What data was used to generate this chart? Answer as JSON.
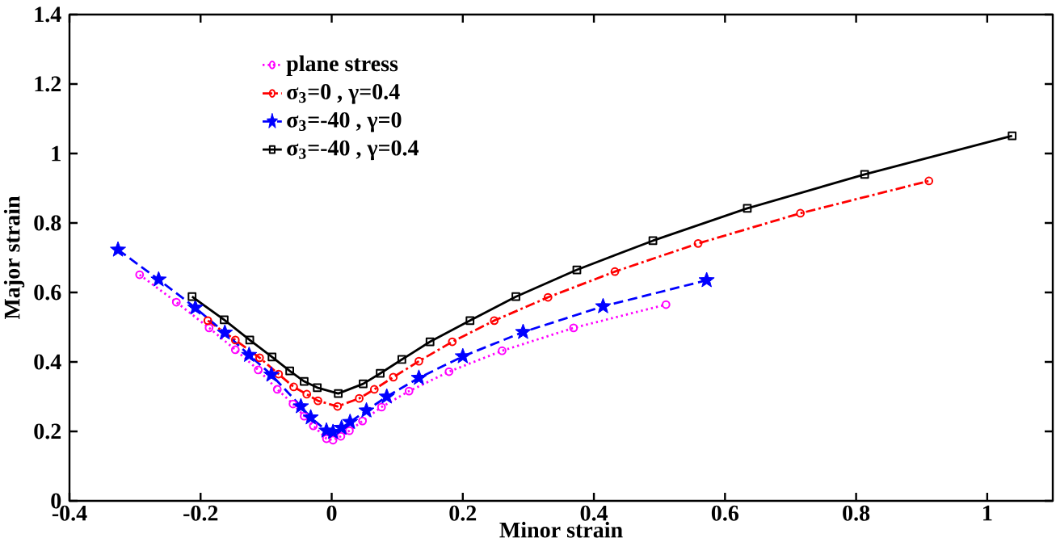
{
  "chart_data": {
    "type": "line",
    "xlabel": "Minor strain",
    "ylabel": "Major strain",
    "xlim": [
      -0.4,
      1.1
    ],
    "ylim": [
      0,
      1.4
    ],
    "xticks": [
      -0.4,
      -0.2,
      0,
      0.2,
      0.4,
      0.6,
      0.8,
      1
    ],
    "yticks": [
      0,
      0.2,
      0.4,
      0.6,
      0.8,
      1,
      1.2,
      1.4
    ],
    "grid": false,
    "legend": "top left",
    "series": [
      {
        "name": "plane stress",
        "color": "#ff00ff",
        "marker": "circle",
        "line_style": "dotted",
        "x": [
          -0.293,
          -0.237,
          -0.187,
          -0.147,
          -0.112,
          -0.083,
          -0.059,
          -0.042,
          -0.028,
          -0.008,
          0.002,
          0.014,
          0.027,
          0.047,
          0.076,
          0.118,
          0.179,
          0.26,
          0.369,
          0.51
        ],
        "values": [
          0.651,
          0.572,
          0.498,
          0.435,
          0.377,
          0.321,
          0.279,
          0.244,
          0.216,
          0.179,
          0.175,
          0.186,
          0.202,
          0.23,
          0.27,
          0.316,
          0.372,
          0.432,
          0.498,
          0.565
        ]
      },
      {
        "name": "σ$_{3}$=0 , γ=0.4",
        "color": "#ff0000",
        "marker": "circle",
        "line_style": "dashdot",
        "x": [
          -0.189,
          -0.147,
          -0.11,
          -0.081,
          -0.058,
          -0.038,
          -0.021,
          0.009,
          0.042,
          0.065,
          0.094,
          0.133,
          0.184,
          0.248,
          0.33,
          0.432,
          0.559,
          0.715,
          0.911
        ],
        "values": [
          0.519,
          0.463,
          0.412,
          0.365,
          0.328,
          0.307,
          0.288,
          0.272,
          0.295,
          0.321,
          0.356,
          0.402,
          0.458,
          0.519,
          0.586,
          0.66,
          0.741,
          0.828,
          0.921
        ]
      },
      {
        "name": "σ$_{3}$=-40 , γ=0",
        "color": "#0000ff",
        "marker": "star",
        "line_style": "dashed",
        "x": [
          -0.326,
          -0.264,
          -0.208,
          -0.163,
          -0.126,
          -0.092,
          -0.047,
          -0.032,
          -0.008,
          0.002,
          0.015,
          0.028,
          0.053,
          0.084,
          0.133,
          0.2,
          0.292,
          0.414,
          0.572
        ],
        "values": [
          0.723,
          0.637,
          0.556,
          0.484,
          0.42,
          0.363,
          0.272,
          0.24,
          0.202,
          0.198,
          0.21,
          0.227,
          0.26,
          0.3,
          0.354,
          0.416,
          0.486,
          0.56,
          0.635
        ]
      },
      {
        "name": "σ$_{3}$=-40 , γ=0.4",
        "color": "#000000",
        "marker": "square",
        "line_style": "solid",
        "x": [
          -0.213,
          -0.164,
          -0.125,
          -0.091,
          -0.064,
          -0.042,
          -0.022,
          0.01,
          0.048,
          0.074,
          0.107,
          0.15,
          0.211,
          0.281,
          0.374,
          0.49,
          0.634,
          0.813,
          1.038
        ],
        "values": [
          0.588,
          0.521,
          0.463,
          0.414,
          0.374,
          0.344,
          0.326,
          0.309,
          0.337,
          0.367,
          0.407,
          0.458,
          0.519,
          0.588,
          0.665,
          0.749,
          0.842,
          0.94,
          1.051
        ]
      }
    ]
  }
}
